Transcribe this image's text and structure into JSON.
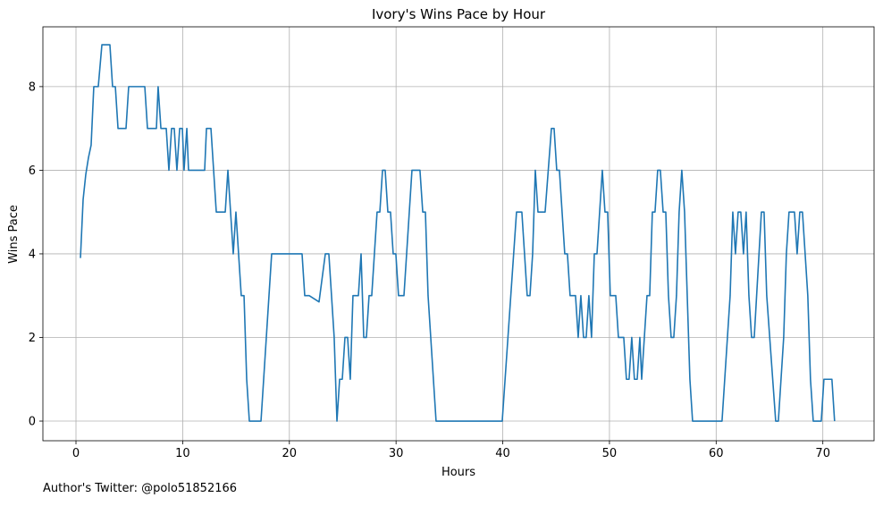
{
  "chart_data": {
    "type": "line",
    "title": "Ivory's Wins Pace by Hour",
    "xlabel": "Hours",
    "ylabel": "Wins Pace",
    "footnote": "Author's Twitter: @polo51852166",
    "xlim": [
      -3.1,
      74.8
    ],
    "ylim": [
      -0.47,
      9.43
    ],
    "xticks": [
      0,
      10,
      20,
      30,
      40,
      50,
      60,
      70
    ],
    "yticks": [
      0,
      2,
      4,
      6,
      8
    ],
    "grid": true,
    "x": [
      0.42,
      0.67,
      0.92,
      1.17,
      1.42,
      1.67,
      2.09,
      2.43,
      3.18,
      3.43,
      3.69,
      3.94,
      4.69,
      4.94,
      6.45,
      6.7,
      7.54,
      7.7,
      7.96,
      8.46,
      8.71,
      8.96,
      9.21,
      9.46,
      9.72,
      9.97,
      10.13,
      10.39,
      10.55,
      10.97,
      12.06,
      12.23,
      12.65,
      13.15,
      13.99,
      14.24,
      14.74,
      14.99,
      15.49,
      15.75,
      16.0,
      16.25,
      17.34,
      18.34,
      21.19,
      21.44,
      21.86,
      22.78,
      23.37,
      23.7,
      24.2,
      24.46,
      24.71,
      24.96,
      25.21,
      25.46,
      25.71,
      25.96,
      26.47,
      26.72,
      26.97,
      27.22,
      27.47,
      27.72,
      28.22,
      28.48,
      28.73,
      28.98,
      29.23,
      29.48,
      29.73,
      29.98,
      30.23,
      30.74,
      31.49,
      32.24,
      32.5,
      32.75,
      33.0,
      33.75,
      39.95,
      41.29,
      41.79,
      42.29,
      42.55,
      42.8,
      43.05,
      43.3,
      43.97,
      44.56,
      44.81,
      45.06,
      45.31,
      45.81,
      46.06,
      46.31,
      46.82,
      47.07,
      47.32,
      47.57,
      47.82,
      48.07,
      48.32,
      48.58,
      48.83,
      49.33,
      49.58,
      49.83,
      50.08,
      50.59,
      50.84,
      51.34,
      51.59,
      51.84,
      52.09,
      52.34,
      52.6,
      52.85,
      53.02,
      53.27,
      53.52,
      53.77,
      54.02,
      54.27,
      54.52,
      54.77,
      55.03,
      55.28,
      55.53,
      55.78,
      56.03,
      56.28,
      56.53,
      56.78,
      57.04,
      57.54,
      57.79,
      60.55,
      61.31,
      61.56,
      61.81,
      62.06,
      62.31,
      62.56,
      62.81,
      63.07,
      63.32,
      63.57,
      64.24,
      64.49,
      64.74,
      65.58,
      65.83,
      66.33,
      66.58,
      66.83,
      67.34,
      67.59,
      67.84,
      68.09,
      68.59,
      68.84,
      69.1,
      69.85,
      70.1,
      70.85,
      71.1
    ],
    "series": [
      {
        "name": "Wins Pace",
        "color": "#1f77b4",
        "values": [
          3.9,
          5.3,
          5.9,
          6.3,
          6.6,
          8,
          8,
          9,
          9,
          8,
          8,
          7,
          7,
          8,
          8,
          7,
          7,
          8,
          7,
          7,
          6,
          7,
          7,
          6,
          7,
          7,
          6,
          7,
          6,
          6,
          6,
          7,
          7,
          5,
          5,
          6,
          4,
          5,
          3,
          3,
          1,
          0,
          0,
          4,
          4,
          3,
          3,
          2.85,
          4,
          4,
          2,
          0,
          1,
          1,
          2,
          2,
          1,
          3,
          3,
          4,
          2,
          2,
          3,
          3,
          5,
          5,
          6,
          6,
          5,
          5,
          4,
          4,
          3,
          3,
          6,
          6,
          5,
          5,
          3,
          0,
          0,
          5,
          5,
          3,
          3,
          4,
          6,
          5,
          5,
          7,
          7,
          6,
          6,
          4,
          4,
          3,
          3,
          2,
          3,
          2,
          2,
          3,
          2,
          4,
          4,
          6,
          5,
          5,
          3,
          3,
          2,
          2,
          1,
          1,
          2,
          1,
          1,
          2,
          1,
          2,
          3,
          3,
          5,
          5,
          6,
          6,
          5,
          5,
          3,
          2,
          2,
          3,
          5,
          6,
          5,
          1,
          0,
          0,
          3,
          5,
          4,
          5,
          5,
          4,
          5,
          3,
          2,
          2,
          5,
          5,
          3,
          0,
          0,
          2,
          4,
          5,
          5,
          4,
          5,
          5,
          3,
          1,
          0,
          0,
          1,
          1,
          0
        ]
      }
    ]
  }
}
